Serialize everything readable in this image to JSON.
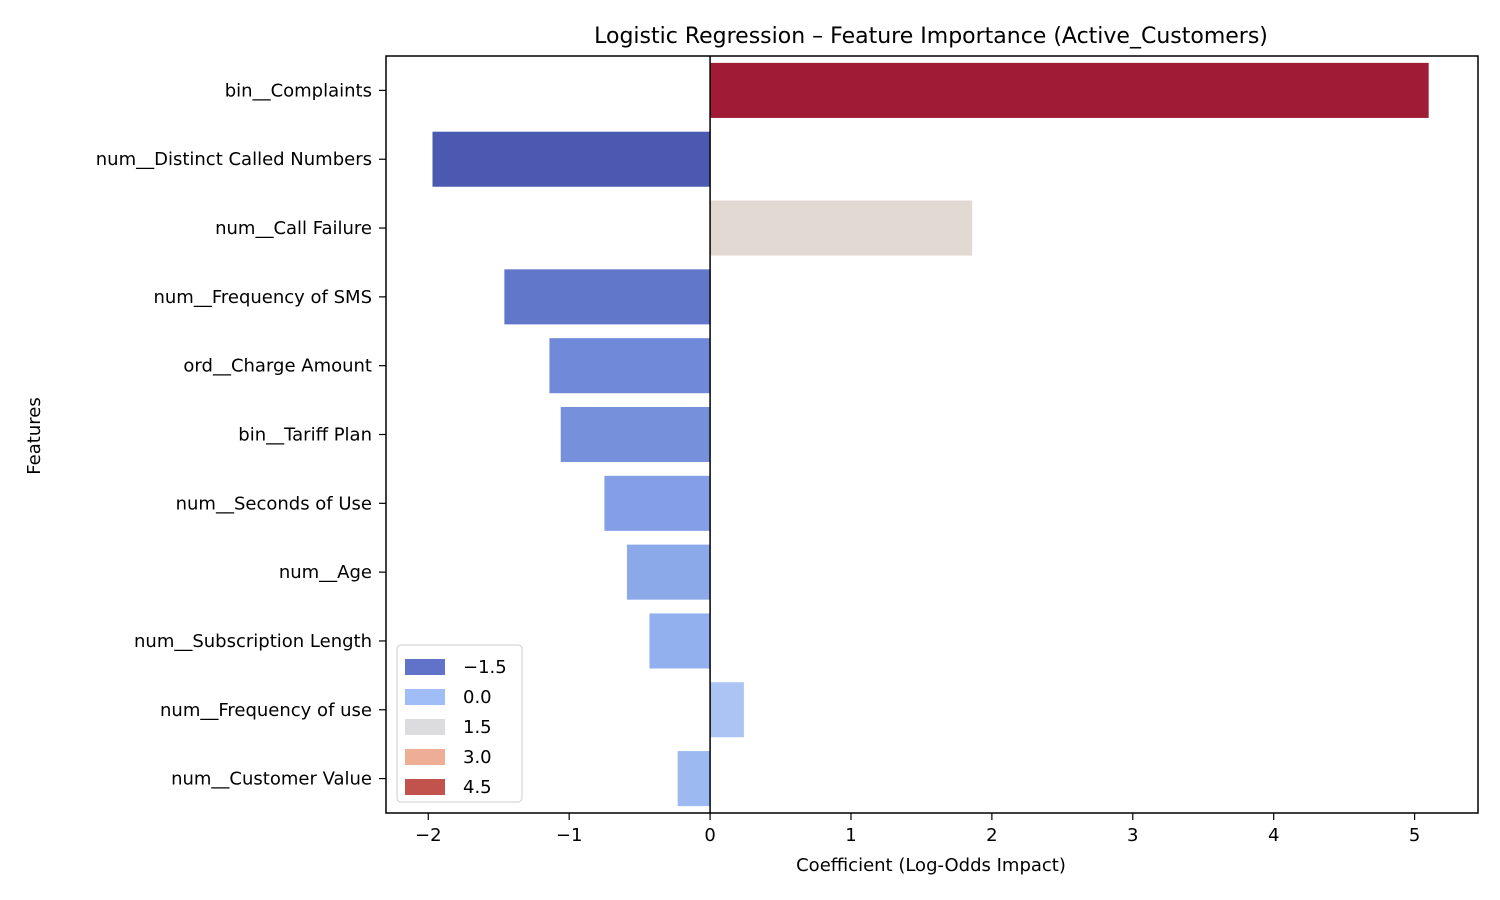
{
  "chart_data": {
    "type": "bar",
    "orientation": "horizontal",
    "title": "Logistic Regression – Feature Importance (Active_Customers)",
    "xlabel": "Coefficient (Log-Odds Impact)",
    "ylabel": "Features",
    "xlim": [
      -2.3,
      5.45
    ],
    "xticks": [
      -2,
      -1,
      0,
      1,
      2,
      3,
      4,
      5
    ],
    "xtick_labels": [
      "−2",
      "−1",
      "0",
      "1",
      "2",
      "3",
      "4",
      "5"
    ],
    "zero_line": 0,
    "grid": false,
    "categories": [
      "bin__Complaints",
      "num__Distinct Called Numbers",
      "num__Call Failure",
      "num__Frequency of SMS",
      "ord__Charge Amount",
      "bin__Tariff Plan",
      "num__Seconds of Use",
      "num__Age",
      "num__Subscription Length",
      "num__Frequency of use",
      "num__Customer Value"
    ],
    "values": [
      5.1,
      -1.97,
      1.86,
      -1.46,
      -1.14,
      -1.06,
      -0.75,
      -0.59,
      -0.43,
      0.24,
      -0.23
    ],
    "colors": [
      "#9f1b36",
      "#4b59b0",
      "#e3d9d3",
      "#6177ca",
      "#7189d9",
      "#7690dc",
      "#849fe5",
      "#8ba8e9",
      "#92b0ee",
      "#abc4f4",
      "#9cb9f1"
    ],
    "legend": {
      "placement": "lower-left",
      "entries": [
        {
          "label": "−1.5",
          "color": "#6173c9"
        },
        {
          "label": "0.0",
          "color": "#a1bdf8"
        },
        {
          "label": "1.5",
          "color": "#dcdcde"
        },
        {
          "label": "3.0",
          "color": "#eeae95"
        },
        {
          "label": "4.5",
          "color": "#c1524c"
        }
      ]
    }
  }
}
